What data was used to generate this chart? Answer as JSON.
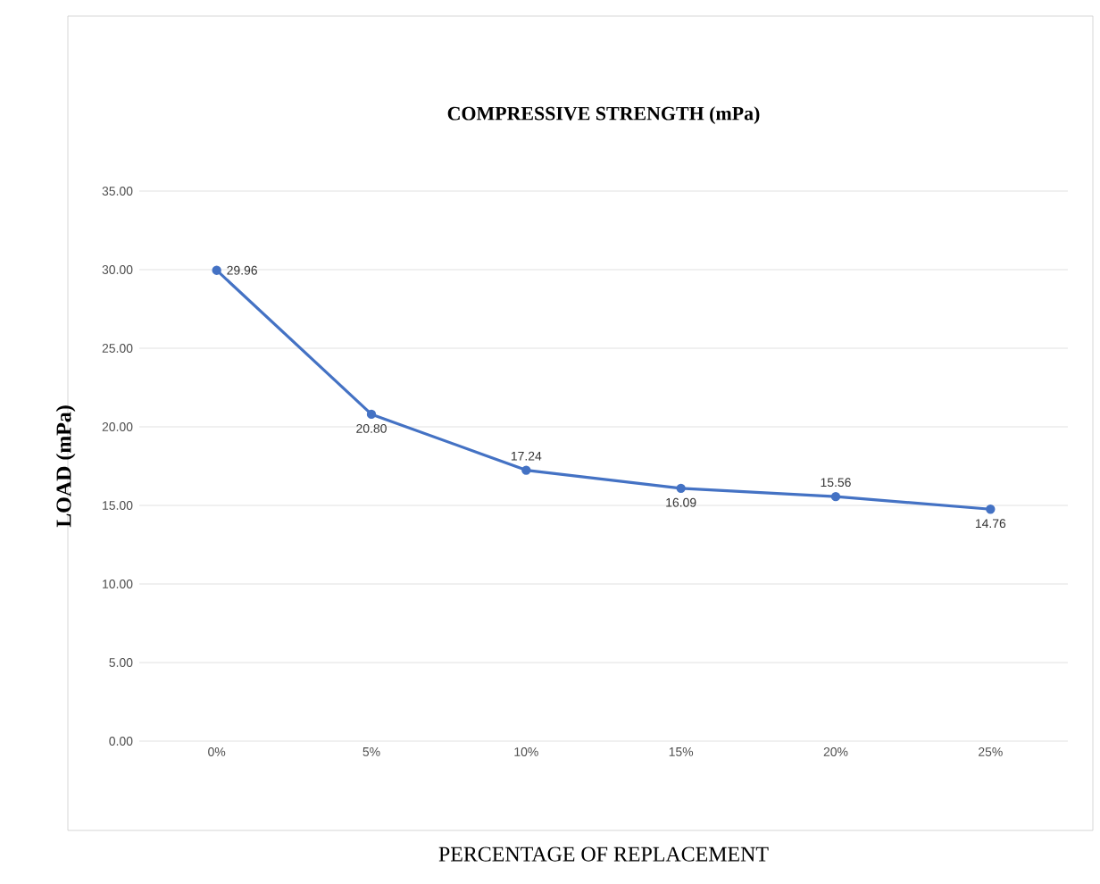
{
  "chart_data": {
    "type": "line",
    "title": "COMPRESSIVE STRENGTH (mPa)",
    "xlabel": "PERCENTAGE OF REPLACEMENT",
    "ylabel": "LOAD (mPa)",
    "categories": [
      "0%",
      "5%",
      "10%",
      "15%",
      "20%",
      "25%"
    ],
    "series": [
      {
        "color": "#4472c4",
        "values": [
          29.96,
          20.8,
          17.24,
          16.09,
          15.56,
          14.76
        ],
        "value_labels": [
          "29.96",
          "20.80",
          "17.24",
          "16.09",
          "15.56",
          "14.76"
        ]
      }
    ],
    "ylim": [
      0,
      35
    ],
    "yticks": [
      {
        "value": 0,
        "label": "0.00"
      },
      {
        "value": 5,
        "label": "5.00"
      },
      {
        "value": 10,
        "label": "10.00"
      },
      {
        "value": 15,
        "label": "15.00"
      },
      {
        "value": 20,
        "label": "20.00"
      },
      {
        "value": 25,
        "label": "25.00"
      },
      {
        "value": 30,
        "label": "30.00"
      },
      {
        "value": 35,
        "label": "35.00"
      }
    ],
    "grid": "y",
    "marker": "circle",
    "line_style": "solid"
  }
}
